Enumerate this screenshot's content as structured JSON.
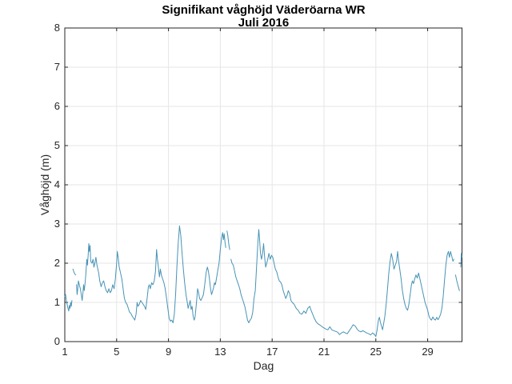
{
  "chart_data": {
    "type": "line",
    "title": "Signifikant våghöjd Väderöarna WR",
    "subtitle": "Juli 2016",
    "xlabel": "Dag",
    "ylabel": "Våghöjd (m)",
    "xlim": [
      1,
      31.65
    ],
    "ylim": [
      0,
      8
    ],
    "xticks": [
      1,
      5,
      9,
      13,
      17,
      21,
      25,
      29
    ],
    "yticks": [
      0,
      1,
      2,
      3,
      4,
      5,
      6,
      7,
      8
    ],
    "grid": true,
    "legend": "none",
    "line_color": "#4793B5",
    "grid_color": "#E6E6E6",
    "axis_color": "#262626",
    "series_name": "Signifikant våghöjd (m), Väderöarna WR, juli 2016",
    "points": [
      [
        1.0,
        1.15
      ],
      [
        1.06,
        1.2
      ],
      [
        1.12,
        1.05
      ],
      [
        1.18,
        0.95
      ],
      [
        1.25,
        0.85
      ],
      [
        1.3,
        0.78
      ],
      [
        1.35,
        0.92
      ],
      [
        1.4,
        0.85
      ],
      [
        1.45,
        1.0
      ],
      [
        1.5,
        0.9
      ],
      [
        1.55,
        1.05
      ],
      [
        1.58,
        null
      ],
      [
        1.63,
        1.85
      ],
      [
        1.7,
        1.78
      ],
      [
        1.78,
        1.72
      ],
      [
        1.84,
        1.7
      ],
      [
        1.87,
        null
      ],
      [
        1.9,
        1.45
      ],
      [
        1.95,
        1.2
      ],
      [
        2.0,
        1.35
      ],
      [
        2.05,
        1.55
      ],
      [
        2.12,
        1.45
      ],
      [
        2.2,
        1.35
      ],
      [
        2.27,
        1.2
      ],
      [
        2.34,
        1.05
      ],
      [
        2.4,
        1.25
      ],
      [
        2.45,
        1.45
      ],
      [
        2.5,
        1.3
      ],
      [
        2.57,
        1.5
      ],
      [
        2.63,
        1.75
      ],
      [
        2.7,
        2.1
      ],
      [
        2.75,
        1.95
      ],
      [
        2.8,
        2.2
      ],
      [
        2.85,
        2.5
      ],
      [
        2.9,
        2.3
      ],
      [
        2.95,
        2.45
      ],
      [
        3.0,
        2.05
      ],
      [
        3.1,
        2.0
      ],
      [
        3.18,
        2.1
      ],
      [
        3.25,
        1.9
      ],
      [
        3.32,
        2.0
      ],
      [
        3.4,
        2.15
      ],
      [
        3.48,
        1.95
      ],
      [
        3.55,
        1.85
      ],
      [
        3.62,
        1.75
      ],
      [
        3.7,
        1.55
      ],
      [
        3.8,
        1.4
      ],
      [
        3.9,
        1.5
      ],
      [
        4.0,
        1.55
      ],
      [
        4.1,
        1.4
      ],
      [
        4.2,
        1.3
      ],
      [
        4.3,
        1.25
      ],
      [
        4.4,
        1.35
      ],
      [
        4.5,
        1.25
      ],
      [
        4.6,
        1.3
      ],
      [
        4.7,
        1.45
      ],
      [
        4.8,
        1.35
      ],
      [
        4.9,
        1.6
      ],
      [
        5.0,
        2.0
      ],
      [
        5.05,
        2.3
      ],
      [
        5.12,
        2.15
      ],
      [
        5.2,
        1.9
      ],
      [
        5.3,
        1.75
      ],
      [
        5.4,
        1.6
      ],
      [
        5.5,
        1.35
      ],
      [
        5.6,
        1.1
      ],
      [
        5.7,
        1.0
      ],
      [
        5.8,
        0.95
      ],
      [
        5.9,
        0.85
      ],
      [
        6.0,
        0.75
      ],
      [
        6.1,
        0.72
      ],
      [
        6.2,
        0.65
      ],
      [
        6.3,
        0.6
      ],
      [
        6.4,
        0.55
      ],
      [
        6.5,
        0.7
      ],
      [
        6.58,
        1.0
      ],
      [
        6.65,
        0.9
      ],
      [
        6.75,
        0.95
      ],
      [
        6.85,
        1.05
      ],
      [
        6.95,
        1.0
      ],
      [
        7.05,
        0.95
      ],
      [
        7.15,
        0.9
      ],
      [
        7.25,
        0.82
      ],
      [
        7.35,
        1.1
      ],
      [
        7.45,
        1.4
      ],
      [
        7.52,
        1.45
      ],
      [
        7.6,
        1.35
      ],
      [
        7.7,
        1.5
      ],
      [
        7.8,
        1.45
      ],
      [
        7.9,
        1.55
      ],
      [
        8.0,
        1.8
      ],
      [
        8.08,
        2.35
      ],
      [
        8.15,
        2.1
      ],
      [
        8.22,
        1.9
      ],
      [
        8.3,
        1.65
      ],
      [
        8.38,
        1.85
      ],
      [
        8.45,
        1.7
      ],
      [
        8.55,
        1.6
      ],
      [
        8.65,
        1.5
      ],
      [
        8.75,
        1.35
      ],
      [
        8.85,
        1.1
      ],
      [
        8.95,
        0.85
      ],
      [
        9.05,
        0.6
      ],
      [
        9.15,
        0.52
      ],
      [
        9.25,
        0.55
      ],
      [
        9.35,
        0.48
      ],
      [
        9.45,
        0.7
      ],
      [
        9.55,
        1.2
      ],
      [
        9.65,
        1.9
      ],
      [
        9.75,
        2.5
      ],
      [
        9.85,
        2.95
      ],
      [
        9.95,
        2.7
      ],
      [
        10.05,
        2.25
      ],
      [
        10.15,
        1.85
      ],
      [
        10.25,
        1.5
      ],
      [
        10.35,
        1.2
      ],
      [
        10.45,
        1.0
      ],
      [
        10.52,
        0.85
      ],
      [
        10.6,
        0.95
      ],
      [
        10.68,
        1.05
      ],
      [
        10.75,
        0.82
      ],
      [
        10.82,
        0.9
      ],
      [
        10.9,
        0.65
      ],
      [
        10.98,
        0.55
      ],
      [
        11.05,
        0.62
      ],
      [
        11.15,
        0.95
      ],
      [
        11.25,
        1.35
      ],
      [
        11.32,
        1.25
      ],
      [
        11.4,
        1.1
      ],
      [
        11.5,
        1.05
      ],
      [
        11.6,
        1.12
      ],
      [
        11.7,
        1.2
      ],
      [
        11.8,
        1.45
      ],
      [
        11.9,
        1.75
      ],
      [
        12.0,
        1.9
      ],
      [
        12.08,
        1.8
      ],
      [
        12.16,
        1.6
      ],
      [
        12.25,
        1.35
      ],
      [
        12.32,
        1.2
      ],
      [
        12.4,
        1.28
      ],
      [
        12.48,
        1.38
      ],
      [
        12.55,
        1.5
      ],
      [
        12.62,
        1.45
      ],
      [
        12.7,
        1.6
      ],
      [
        12.8,
        1.8
      ],
      [
        12.9,
        2.0
      ],
      [
        13.0,
        2.35
      ],
      [
        13.1,
        2.65
      ],
      [
        13.18,
        2.78
      ],
      [
        13.24,
        2.6
      ],
      [
        13.3,
        2.75
      ],
      [
        13.36,
        2.55
      ],
      [
        13.42,
        2.4
      ],
      [
        13.45,
        null
      ],
      [
        13.52,
        2.82
      ],
      [
        13.58,
        2.7
      ],
      [
        13.65,
        2.5
      ],
      [
        13.72,
        2.35
      ],
      [
        13.76,
        null
      ],
      [
        13.82,
        2.1
      ],
      [
        13.9,
        2.0
      ],
      [
        14.0,
        1.95
      ],
      [
        14.1,
        1.8
      ],
      [
        14.2,
        1.65
      ],
      [
        14.3,
        1.55
      ],
      [
        14.4,
        1.45
      ],
      [
        14.5,
        1.35
      ],
      [
        14.6,
        1.2
      ],
      [
        14.7,
        1.1
      ],
      [
        14.8,
        1.0
      ],
      [
        14.9,
        0.88
      ],
      [
        15.0,
        0.72
      ],
      [
        15.1,
        0.55
      ],
      [
        15.2,
        0.48
      ],
      [
        15.3,
        0.55
      ],
      [
        15.4,
        0.6
      ],
      [
        15.5,
        0.75
      ],
      [
        15.6,
        1.1
      ],
      [
        15.7,
        1.3
      ],
      [
        15.8,
        1.9
      ],
      [
        15.9,
        2.55
      ],
      [
        15.97,
        2.86
      ],
      [
        16.03,
        2.6
      ],
      [
        16.1,
        2.25
      ],
      [
        16.18,
        2.1
      ],
      [
        16.26,
        2.25
      ],
      [
        16.34,
        2.5
      ],
      [
        16.42,
        2.15
      ],
      [
        16.5,
        1.9
      ],
      [
        16.58,
        2.0
      ],
      [
        16.66,
        2.1
      ],
      [
        16.75,
        2.25
      ],
      [
        16.85,
        2.1
      ],
      [
        16.95,
        2.2
      ],
      [
        17.05,
        2.15
      ],
      [
        17.15,
        2.0
      ],
      [
        17.25,
        1.85
      ],
      [
        17.35,
        1.78
      ],
      [
        17.45,
        1.65
      ],
      [
        17.55,
        1.55
      ],
      [
        17.65,
        1.52
      ],
      [
        17.75,
        1.45
      ],
      [
        17.85,
        1.3
      ],
      [
        17.95,
        1.2
      ],
      [
        18.05,
        1.1
      ],
      [
        18.15,
        1.18
      ],
      [
        18.25,
        1.3
      ],
      [
        18.35,
        1.22
      ],
      [
        18.45,
        1.05
      ],
      [
        18.55,
        1.0
      ],
      [
        18.7,
        0.95
      ],
      [
        18.85,
        0.85
      ],
      [
        19.0,
        0.8
      ],
      [
        19.15,
        0.72
      ],
      [
        19.3,
        0.7
      ],
      [
        19.45,
        0.78
      ],
      [
        19.6,
        0.72
      ],
      [
        19.75,
        0.85
      ],
      [
        19.9,
        0.9
      ],
      [
        20.0,
        0.8
      ],
      [
        20.1,
        0.72
      ],
      [
        20.25,
        0.6
      ],
      [
        20.4,
        0.5
      ],
      [
        20.55,
        0.45
      ],
      [
        20.7,
        0.42
      ],
      [
        20.85,
        0.38
      ],
      [
        21.0,
        0.35
      ],
      [
        21.15,
        0.32
      ],
      [
        21.3,
        0.3
      ],
      [
        21.45,
        0.38
      ],
      [
        21.6,
        0.3
      ],
      [
        21.75,
        0.28
      ],
      [
        21.9,
        0.26
      ],
      [
        22.05,
        0.24
      ],
      [
        22.2,
        0.18
      ],
      [
        22.35,
        0.22
      ],
      [
        22.5,
        0.25
      ],
      [
        22.65,
        0.22
      ],
      [
        22.8,
        0.2
      ],
      [
        22.95,
        0.28
      ],
      [
        23.1,
        0.35
      ],
      [
        23.25,
        0.43
      ],
      [
        23.4,
        0.4
      ],
      [
        23.55,
        0.32
      ],
      [
        23.7,
        0.27
      ],
      [
        23.85,
        0.25
      ],
      [
        24.0,
        0.28
      ],
      [
        24.15,
        0.25
      ],
      [
        24.3,
        0.22
      ],
      [
        24.45,
        0.2
      ],
      [
        24.6,
        0.17
      ],
      [
        24.75,
        0.22
      ],
      [
        24.9,
        0.18
      ],
      [
        25.0,
        0.13
      ],
      [
        25.1,
        0.3
      ],
      [
        25.2,
        0.55
      ],
      [
        25.28,
        0.62
      ],
      [
        25.35,
        0.5
      ],
      [
        25.45,
        0.38
      ],
      [
        25.52,
        0.3
      ],
      [
        25.6,
        0.45
      ],
      [
        25.7,
        0.65
      ],
      [
        25.8,
        0.95
      ],
      [
        25.9,
        1.35
      ],
      [
        26.0,
        1.75
      ],
      [
        26.1,
        2.05
      ],
      [
        26.2,
        2.25
      ],
      [
        26.3,
        2.1
      ],
      [
        26.4,
        1.85
      ],
      [
        26.5,
        1.95
      ],
      [
        26.6,
        2.05
      ],
      [
        26.68,
        2.3
      ],
      [
        26.76,
        2.05
      ],
      [
        26.85,
        1.85
      ],
      [
        26.95,
        1.6
      ],
      [
        27.05,
        1.3
      ],
      [
        27.15,
        1.1
      ],
      [
        27.25,
        0.95
      ],
      [
        27.35,
        0.85
      ],
      [
        27.45,
        0.8
      ],
      [
        27.55,
        0.95
      ],
      [
        27.65,
        1.2
      ],
      [
        27.75,
        1.45
      ],
      [
        27.82,
        1.55
      ],
      [
        27.9,
        1.48
      ],
      [
        28.0,
        1.6
      ],
      [
        28.1,
        1.7
      ],
      [
        28.2,
        1.62
      ],
      [
        28.3,
        1.75
      ],
      [
        28.4,
        1.6
      ],
      [
        28.5,
        1.45
      ],
      [
        28.6,
        1.3
      ],
      [
        28.7,
        1.15
      ],
      [
        28.8,
        1.0
      ],
      [
        28.9,
        0.9
      ],
      [
        29.0,
        0.8
      ],
      [
        29.1,
        0.65
      ],
      [
        29.2,
        0.58
      ],
      [
        29.3,
        0.55
      ],
      [
        29.4,
        0.63
      ],
      [
        29.5,
        0.57
      ],
      [
        29.6,
        0.55
      ],
      [
        29.7,
        0.62
      ],
      [
        29.8,
        0.56
      ],
      [
        29.9,
        0.62
      ],
      [
        30.0,
        0.7
      ],
      [
        30.1,
        0.85
      ],
      [
        30.2,
        1.15
      ],
      [
        30.3,
        1.55
      ],
      [
        30.4,
        1.95
      ],
      [
        30.5,
        2.2
      ],
      [
        30.6,
        2.3
      ],
      [
        30.68,
        2.15
      ],
      [
        30.76,
        2.3
      ],
      [
        30.85,
        2.2
      ],
      [
        30.95,
        2.05
      ],
      [
        31.02,
        2.1
      ],
      [
        31.06,
        null
      ],
      [
        31.15,
        1.7
      ],
      [
        31.25,
        1.55
      ],
      [
        31.35,
        1.42
      ],
      [
        31.45,
        1.3
      ],
      [
        31.5,
        null
      ],
      [
        31.55,
        1.9
      ],
      [
        31.6,
        2.25
      ],
      [
        31.64,
        2.15
      ]
    ]
  }
}
